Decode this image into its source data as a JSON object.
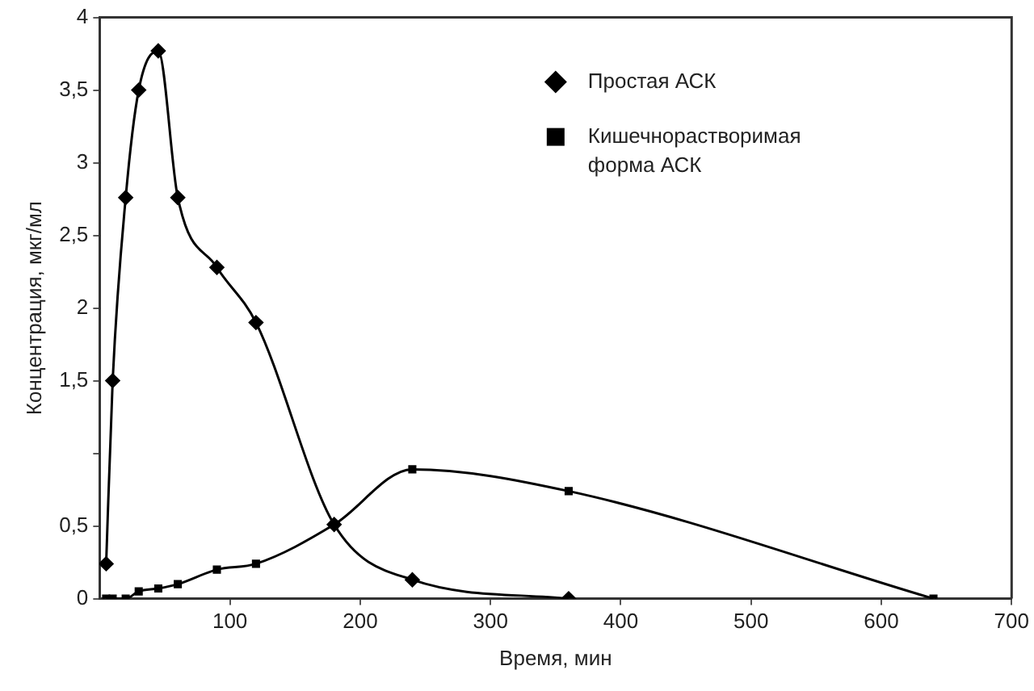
{
  "chart_data": {
    "type": "line",
    "xlabel": "Время, мин",
    "ylabel": "Концентрация, мкг/мл",
    "xlim": [
      0,
      700
    ],
    "xticks": [
      100,
      200,
      300,
      400,
      500,
      600,
      700
    ],
    "ylim": [
      0,
      4
    ],
    "yticks": [
      0,
      {
        "value": 0.5,
        "label": "0,5"
      },
      {
        "value": 1,
        "label": null
      },
      {
        "value": 1.5,
        "label": "1,5"
      },
      2,
      {
        "value": 2.5,
        "label": "2,5"
      },
      3,
      {
        "value": 3.5,
        "label": "3,5"
      },
      4
    ],
    "grid": false,
    "legend": "top right",
    "line_style": "solid",
    "series": [
      {
        "name": "Простая АСК",
        "color": "#000000",
        "marker": "diamond",
        "x": [
          5,
          10,
          20,
          30,
          45,
          60,
          90,
          120,
          180,
          240,
          360
        ],
        "values": [
          0.24,
          1.5,
          2.76,
          3.5,
          3.77,
          2.76,
          2.28,
          1.9,
          0.51,
          0.13,
          0
        ]
      },
      {
        "name": "Кишечнорастворимая форма АСК",
        "color": "#000000",
        "marker": "square",
        "x": [
          5,
          10,
          20,
          30,
          45,
          60,
          90,
          120,
          180,
          240,
          360,
          640
        ],
        "values": [
          0,
          0,
          0,
          0.05,
          0.07,
          0.1,
          0.2,
          0.24,
          0.51,
          0.89,
          0.74,
          0
        ]
      }
    ]
  }
}
